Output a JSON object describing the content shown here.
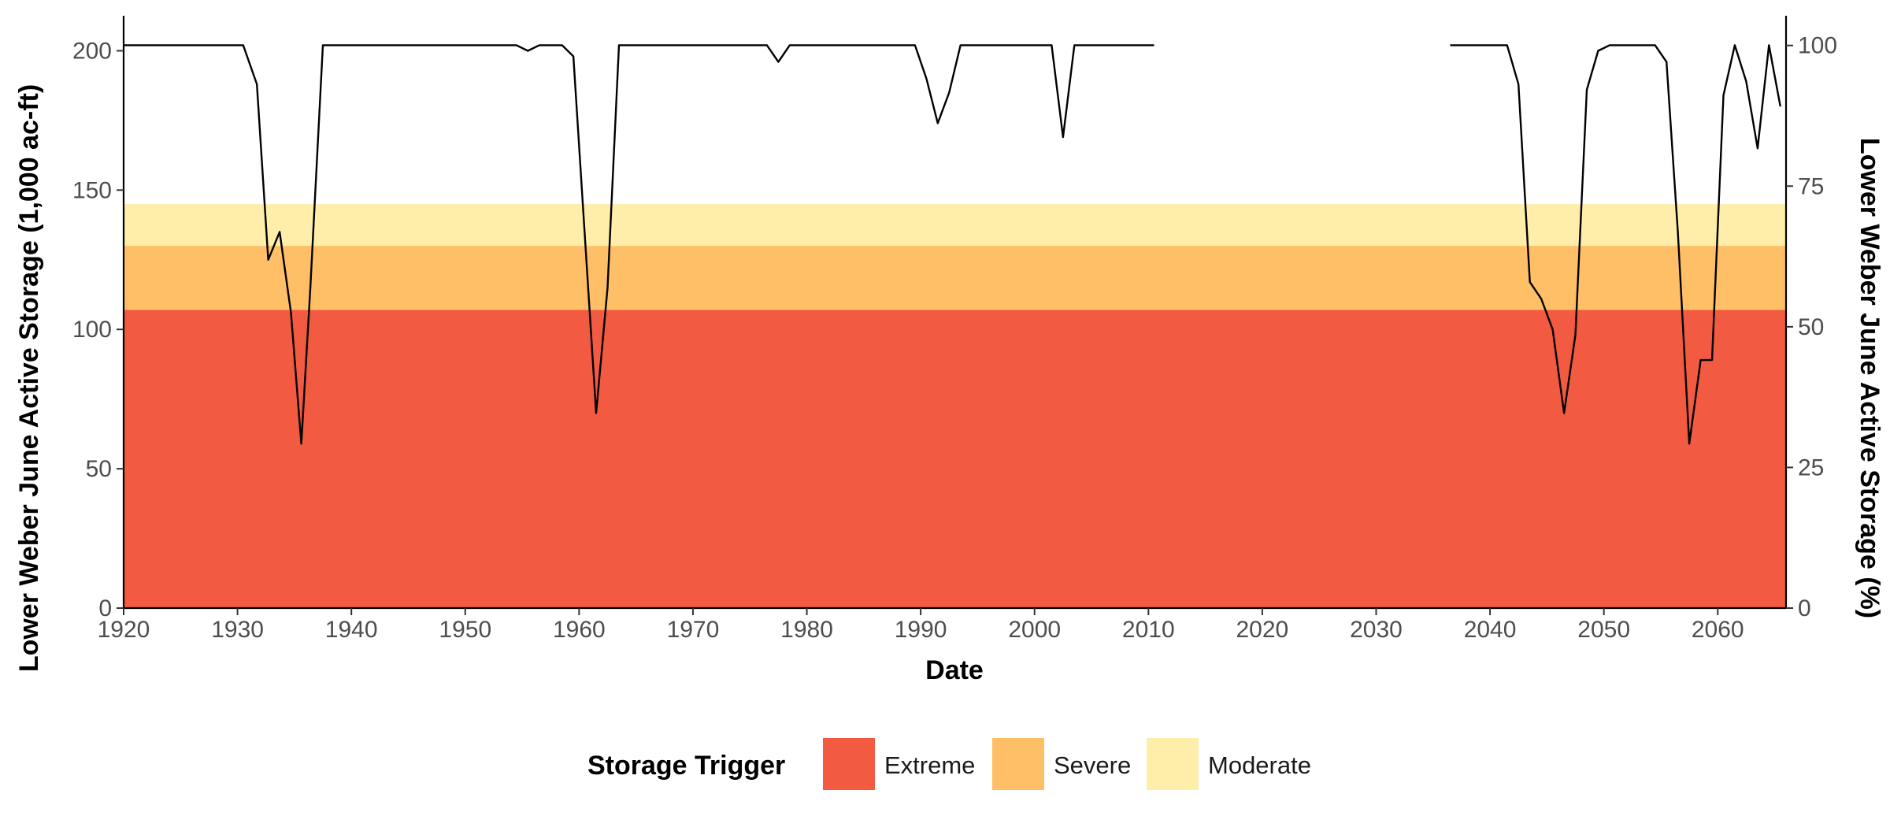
{
  "chart_data": {
    "type": "line",
    "title": "",
    "xlabel": "Date",
    "ylabel": "Lower Weber June Active Storage (1,000 ac-ft)",
    "y2label": "Lower Weber June Active Storage (%)",
    "xlim": [
      1920,
      2066
    ],
    "ylim": [
      0,
      212
    ],
    "y2lim": [
      0,
      105
    ],
    "xticks": [
      "1920",
      "1930",
      "1940",
      "1950",
      "1960",
      "1970",
      "1980",
      "1990",
      "2000",
      "2010",
      "2020",
      "2030",
      "2040",
      "2050",
      "2060"
    ],
    "yticks": [
      "0",
      "50",
      "100",
      "150",
      "200"
    ],
    "y2ticks": [
      "0",
      "25",
      "50",
      "75",
      "100"
    ],
    "grid": false,
    "legend": {
      "title": "Storage Trigger",
      "position": "bottom",
      "entries": [
        "Extreme",
        "Severe",
        "Moderate"
      ]
    },
    "bands": [
      {
        "name": "Extreme",
        "from": 0,
        "to": 107,
        "color": "#f25a42"
      },
      {
        "name": "Severe",
        "from": 107,
        "to": 130,
        "color": "#febf66"
      },
      {
        "name": "Moderate",
        "from": 130,
        "to": 145,
        "color": "#ffeeaa"
      }
    ],
    "series": [
      {
        "color": "#000000",
        "segments": [
          [
            [
              1920,
              202
            ],
            [
              1930.5,
              202
            ],
            [
              1931.7,
              188
            ],
            [
              1932.7,
              125
            ],
            [
              1933.7,
              135
            ],
            [
              1934.7,
              106
            ],
            [
              1935.6,
              59
            ],
            [
              1936.4,
              115
            ],
            [
              1937.5,
              202
            ],
            [
              1954.5,
              202
            ],
            [
              1955.5,
              200
            ],
            [
              1956.5,
              202
            ],
            [
              1958.5,
              202
            ],
            [
              1959.5,
              198
            ],
            [
              1961.5,
              70
            ],
            [
              1962.5,
              115
            ],
            [
              1963.5,
              202
            ],
            [
              1976.5,
              202
            ],
            [
              1977.5,
              196
            ],
            [
              1978.5,
              202
            ],
            [
              1989.5,
              202
            ],
            [
              1990.5,
              190
            ],
            [
              1991.5,
              174
            ],
            [
              1992.5,
              185
            ],
            [
              1993.5,
              202
            ],
            [
              2001.5,
              202
            ],
            [
              2002.5,
              169
            ],
            [
              2003.5,
              202
            ],
            [
              2010.5,
              202
            ]
          ],
          [
            [
              2036.5,
              202
            ],
            [
              2041.5,
              202
            ],
            [
              2042.5,
              188
            ],
            [
              2043.5,
              117
            ],
            [
              2044.5,
              111
            ],
            [
              2045.5,
              100
            ],
            [
              2046.5,
              70
            ],
            [
              2047.5,
              98
            ],
            [
              2048.5,
              186
            ],
            [
              2049.5,
              200
            ],
            [
              2050.5,
              202
            ],
            [
              2054.5,
              202
            ],
            [
              2055.5,
              196
            ],
            [
              2056.5,
              135
            ],
            [
              2057.5,
              59
            ],
            [
              2058.5,
              89
            ],
            [
              2059.5,
              89
            ],
            [
              2060.5,
              184
            ],
            [
              2061.5,
              202
            ],
            [
              2062.5,
              189
            ],
            [
              2063.5,
              165
            ],
            [
              2064.5,
              202
            ],
            [
              2065.5,
              180
            ]
          ]
        ]
      }
    ]
  }
}
